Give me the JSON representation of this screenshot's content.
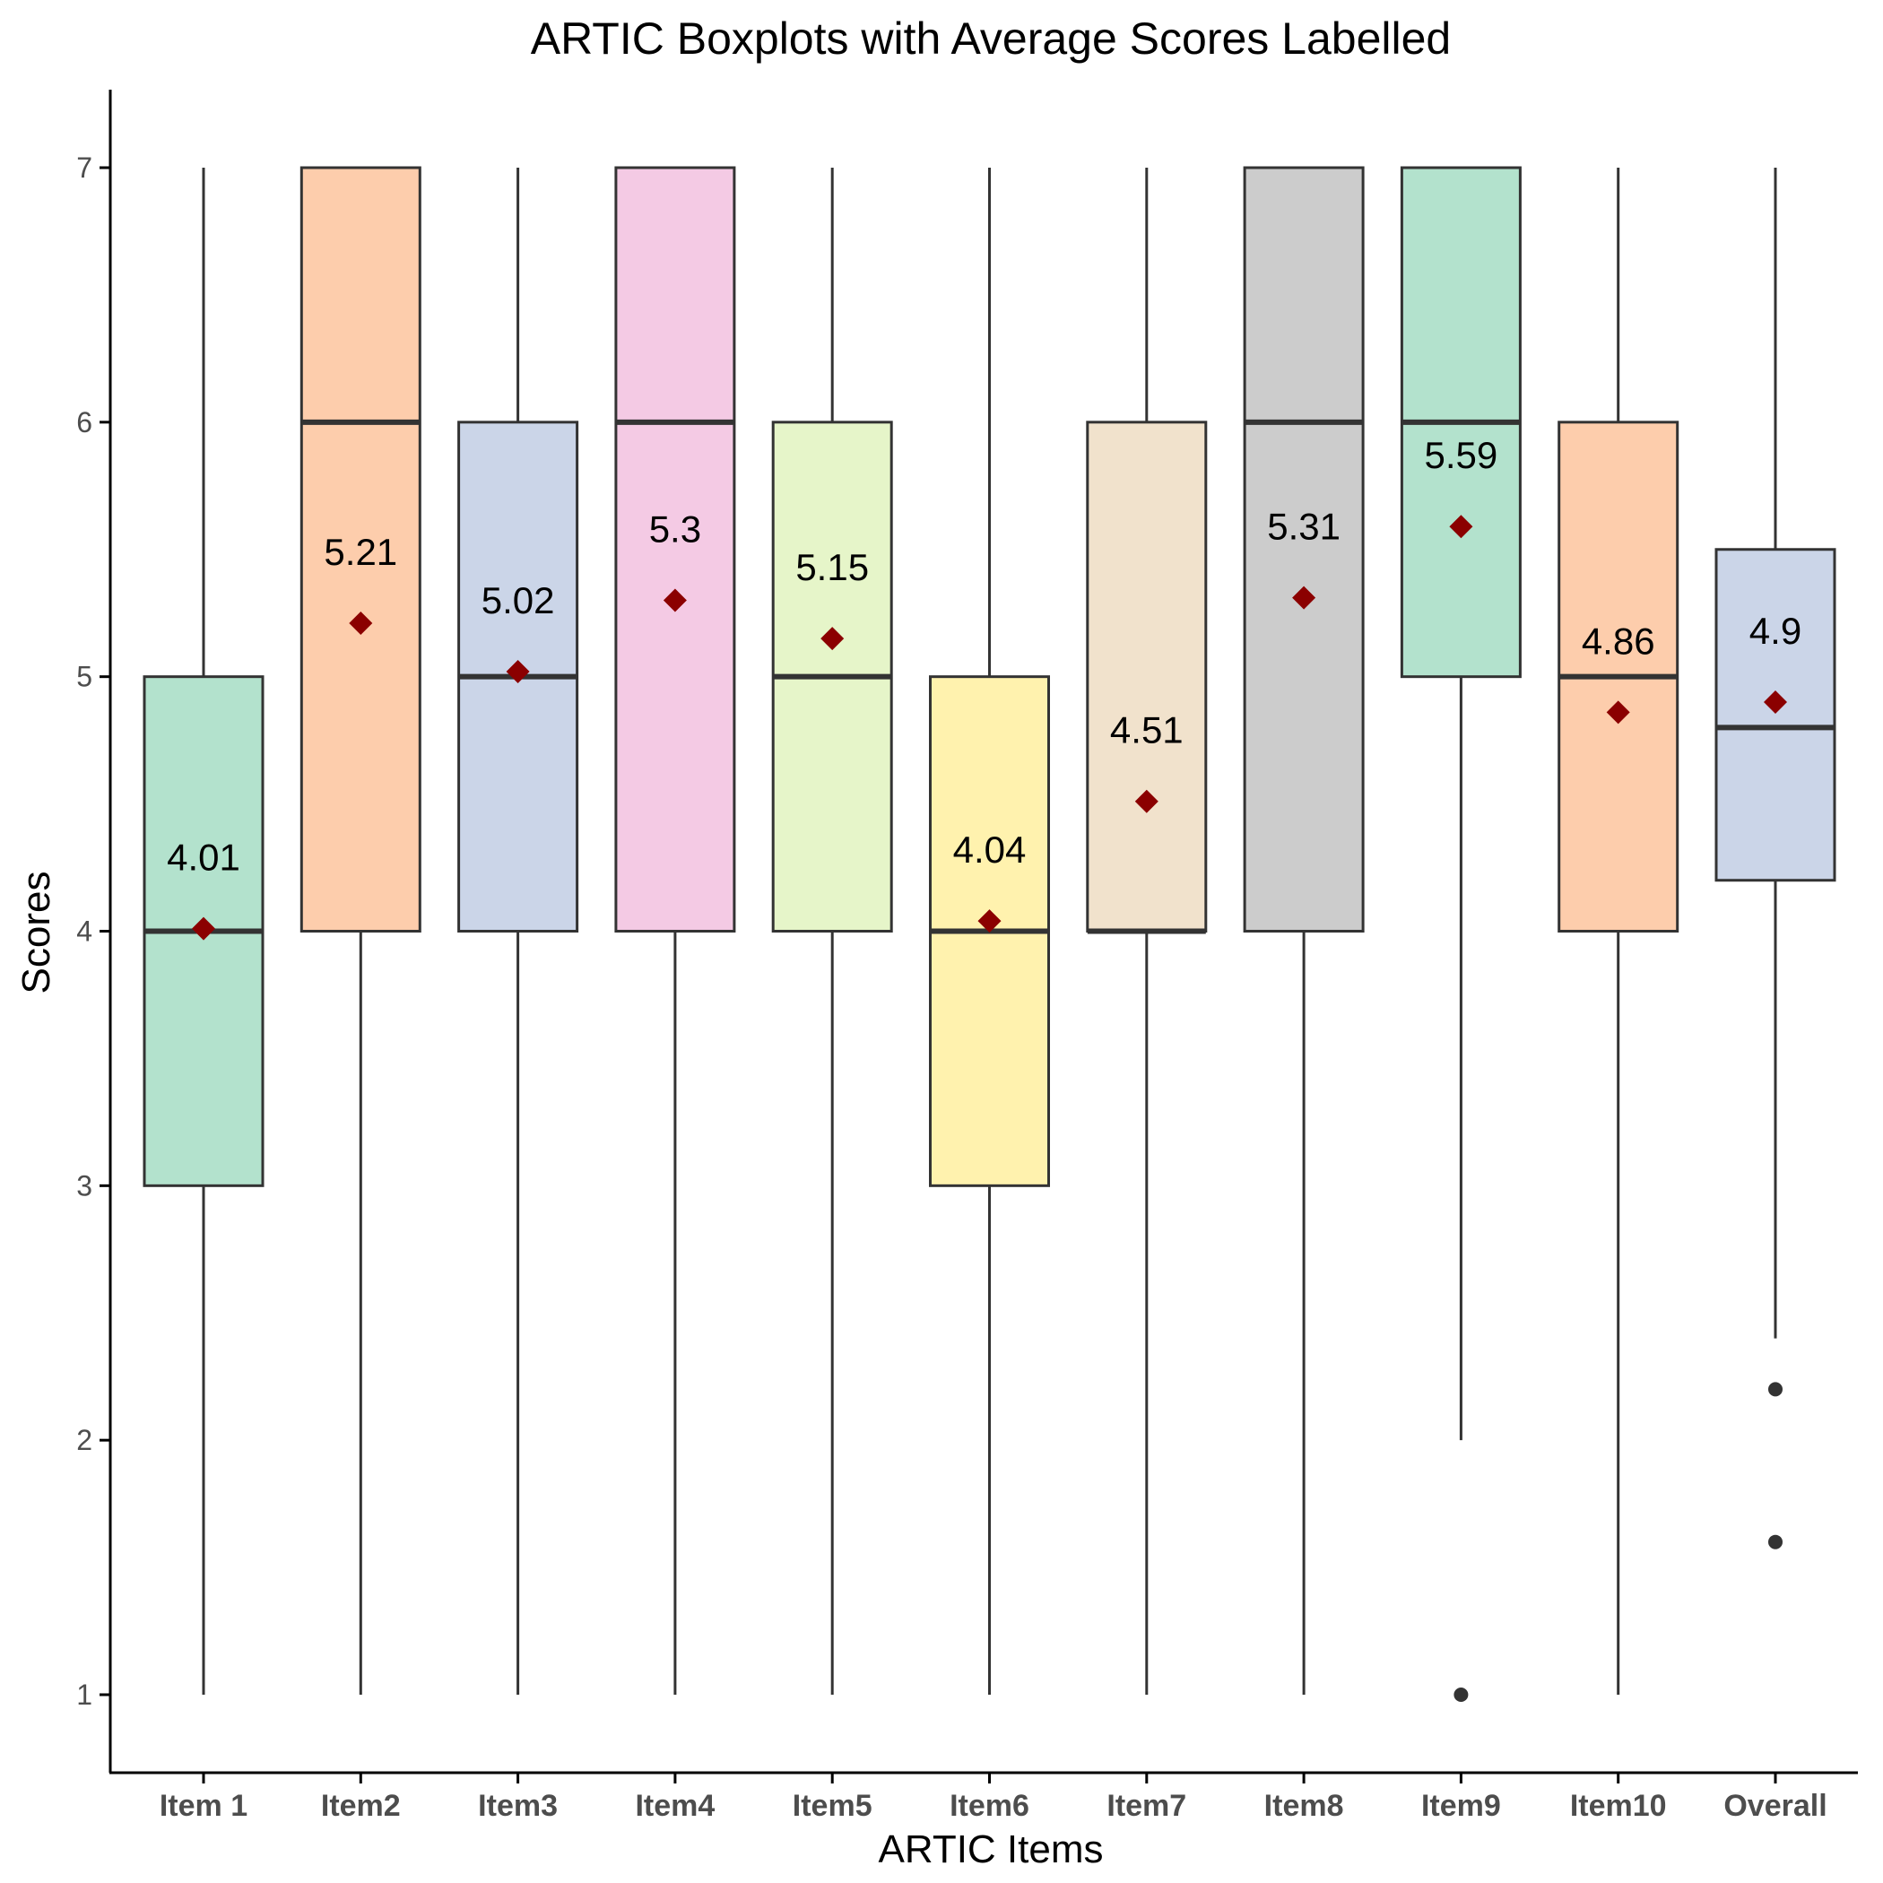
{
  "chart_data": {
    "type": "boxplot",
    "title": "ARTIC Boxplots with Average Scores Labelled",
    "xlabel": "ARTIC Items",
    "ylabel": "Scores",
    "ylim": [
      0.7,
      7.3
    ],
    "yticks": [
      1,
      2,
      3,
      4,
      5,
      6,
      7
    ],
    "grid": false,
    "legend": "none",
    "mean_marker_color": "#8b0000",
    "categories": [
      "Item 1",
      "Item2",
      "Item3",
      "Item4",
      "Item5",
      "Item6",
      "Item7",
      "Item8",
      "Item9",
      "Item10",
      "Overall"
    ],
    "boxes": [
      {
        "name": "Item 1",
        "whisker_low": 1,
        "q1": 3,
        "median": 4,
        "q3": 5,
        "whisker_high": 7,
        "mean": 4.01,
        "mean_label": "4.01",
        "outliers": [],
        "fill": "#b3e2cd"
      },
      {
        "name": "Item2",
        "whisker_low": 1,
        "q1": 4,
        "median": 6,
        "q3": 7,
        "whisker_high": 7,
        "mean": 5.21,
        "mean_label": "5.21",
        "outliers": [],
        "fill": "#fdcdac"
      },
      {
        "name": "Item3",
        "whisker_low": 1,
        "q1": 4,
        "median": 5,
        "q3": 6,
        "whisker_high": 7,
        "mean": 5.02,
        "mean_label": "5.02",
        "outliers": [],
        "fill": "#cbd5e8"
      },
      {
        "name": "Item4",
        "whisker_low": 1,
        "q1": 4,
        "median": 6,
        "q3": 7,
        "whisker_high": 7,
        "mean": 5.3,
        "mean_label": "5.3",
        "outliers": [],
        "fill": "#f4cae4"
      },
      {
        "name": "Item5",
        "whisker_low": 1,
        "q1": 4,
        "median": 5,
        "q3": 6,
        "whisker_high": 7,
        "mean": 5.15,
        "mean_label": "5.15",
        "outliers": [],
        "fill": "#e6f5c9"
      },
      {
        "name": "Item6",
        "whisker_low": 1,
        "q1": 3,
        "median": 4,
        "q3": 5,
        "whisker_high": 7,
        "mean": 4.04,
        "mean_label": "4.04",
        "outliers": [],
        "fill": "#fff2ae"
      },
      {
        "name": "Item7",
        "whisker_low": 1,
        "q1": 4,
        "median": 4,
        "q3": 6,
        "whisker_high": 7,
        "mean": 4.51,
        "mean_label": "4.51",
        "outliers": [],
        "fill": "#f1e2cc"
      },
      {
        "name": "Item8",
        "whisker_low": 1,
        "q1": 4,
        "median": 6,
        "q3": 7,
        "whisker_high": 7,
        "mean": 5.31,
        "mean_label": "5.31",
        "outliers": [],
        "fill": "#cccccc"
      },
      {
        "name": "Item9",
        "whisker_low": 2,
        "q1": 5,
        "median": 6,
        "q3": 7,
        "whisker_high": 7,
        "mean": 5.59,
        "mean_label": "5.59",
        "outliers": [
          1
        ],
        "fill": "#b3e2cd"
      },
      {
        "name": "Item10",
        "whisker_low": 1,
        "q1": 4,
        "median": 5,
        "q3": 6,
        "whisker_high": 7,
        "mean": 4.86,
        "mean_label": "4.86",
        "outliers": [],
        "fill": "#fdcdac"
      },
      {
        "name": "Overall",
        "whisker_low": 2.4,
        "q1": 4.2,
        "median": 4.8,
        "q3": 5.5,
        "whisker_high": 7,
        "mean": 4.9,
        "mean_label": "4.9",
        "outliers": [
          2.2,
          1.6
        ],
        "fill": "#cbd5e8"
      }
    ]
  }
}
